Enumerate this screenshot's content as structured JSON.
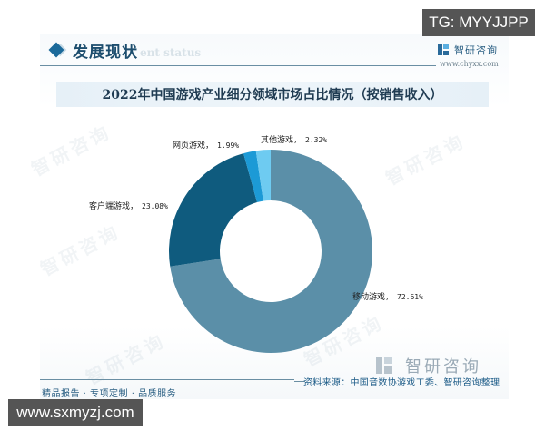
{
  "header": {
    "section_title": "发展现状",
    "section_subtitle": "ent status",
    "tg_badge": "TG: MYYJJPP",
    "brand_name": "智研咨询",
    "brand_url": "www.chyxx.com"
  },
  "chart_title": "2022年中国游戏产业细分领域市场占比情况（按销售收入）",
  "labels": {
    "mobile": {
      "name": "移动游戏，",
      "value": "72.61%"
    },
    "client": {
      "name": "客户端游戏，",
      "value": "23.08%"
    },
    "web": {
      "name": "网页游戏，",
      "value": "1.99%"
    },
    "other": {
      "name": "其他游戏，",
      "value": "2.32%"
    }
  },
  "footer": {
    "tagline": "精品报告 · 专项定制 · 品质服务",
    "source": "资料来源：中国音数协游戏工委、智研咨询整理",
    "brand_name": "智研咨询",
    "site_badge": "www.sxmyzj.com"
  },
  "watermark_text": "智研咨询",
  "colors": {
    "mobile": "#5b8fa8",
    "client": "#0f5b7e",
    "web": "#1c9ad6",
    "other": "#6ecbf1",
    "accent": "#1c6a9a"
  },
  "chart_data": {
    "type": "pie",
    "variant": "donut",
    "title": "2022年中国游戏产业细分领域市场占比情况（按销售收入）",
    "categories": [
      "移动游戏",
      "客户端游戏",
      "网页游戏",
      "其他游戏"
    ],
    "values": [
      72.61,
      23.08,
      1.99,
      2.32
    ],
    "unit": "%",
    "start_angle": "12 o'clock",
    "direction": "clockwise",
    "colors": [
      "#5b8fa8",
      "#0f5b7e",
      "#1c9ad6",
      "#6ecbf1"
    ],
    "legend": "none (outside data labels)",
    "source": "资料来源：中国音数协游戏工委、智研咨询整理"
  }
}
